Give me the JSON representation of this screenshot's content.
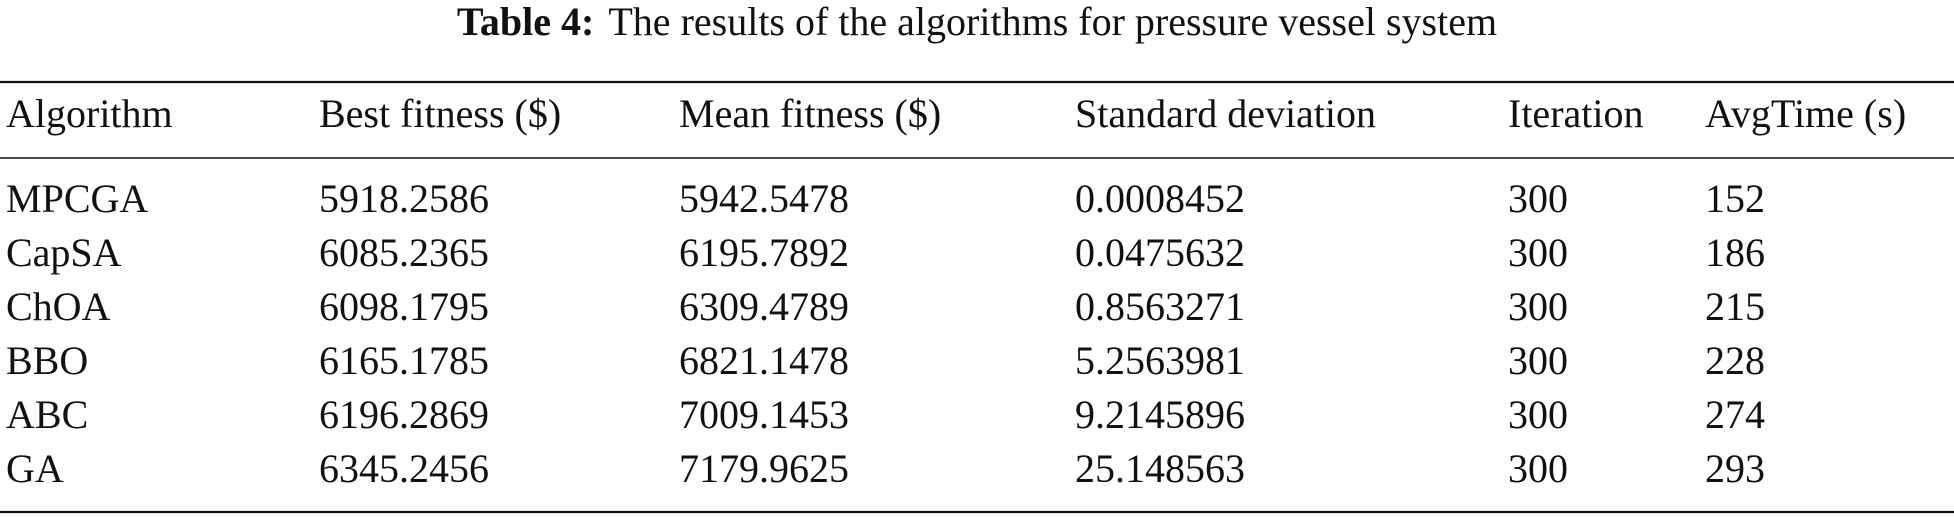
{
  "title": {
    "label": "Table 4:",
    "text": "The results of the algorithms for pressure vessel system"
  },
  "table": {
    "header": [
      "Algorithm",
      "Best fitness ($)",
      "Mean fitness ($)",
      "Standard deviation",
      "Iteration",
      "AvgTime (s)"
    ],
    "rows": [
      [
        "MPCGA",
        "5918.2586",
        "5942.5478",
        "0.0008452",
        "300",
        "152"
      ],
      [
        "CapSA",
        "6085.2365",
        "6195.7892",
        "0.0475632",
        "300",
        "186"
      ],
      [
        "ChOA",
        "6098.1795",
        "6309.4789",
        "0.8563271",
        "300",
        "215"
      ],
      [
        "BBO",
        "6165.1785",
        "6821.1478",
        "5.2563981",
        "300",
        "228"
      ],
      [
        "ABC",
        "6196.2869",
        "7009.1453",
        "9.2145896",
        "300",
        "274"
      ],
      [
        "GA",
        "6345.2456",
        "7179.9625",
        "25.148563",
        "300",
        "293"
      ]
    ]
  }
}
